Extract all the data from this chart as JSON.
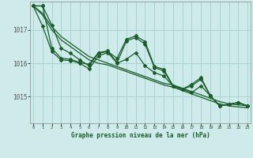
{
  "title": "Graphe pression niveau de la mer (hPa)",
  "bg_color": "#ceeaea",
  "grid_color": "#a8d4d4",
  "line_color": "#1a5c2a",
  "marker_color": "#1a5c2a",
  "x_ticks": [
    0,
    1,
    2,
    3,
    4,
    5,
    6,
    7,
    8,
    9,
    10,
    11,
    12,
    13,
    14,
    15,
    16,
    17,
    18,
    19,
    20,
    21,
    22,
    23
  ],
  "y_ticks": [
    1015,
    1016,
    1017
  ],
  "ylim": [
    1014.2,
    1017.85
  ],
  "xlim": [
    -0.3,
    23.3
  ],
  "series1": [
    1017.72,
    1017.72,
    1017.15,
    1016.45,
    1016.3,
    1016.1,
    1015.92,
    1016.3,
    1016.35,
    1016.15,
    1016.72,
    1016.82,
    1016.65,
    1015.9,
    1015.82,
    1015.32,
    1015.22,
    1015.32,
    1015.52,
    1015.02,
    1014.72,
    1014.77,
    1014.82,
    1014.72
  ],
  "series2": [
    1017.72,
    1017.72,
    1016.45,
    1016.15,
    1016.12,
    1016.02,
    1015.97,
    1016.32,
    1016.37,
    1016.02,
    1016.67,
    1016.77,
    1016.57,
    1015.87,
    1015.77,
    1015.32,
    1015.22,
    1015.37,
    1015.57,
    1015.02,
    1014.72,
    1014.77,
    1014.82,
    1014.72
  ],
  "series3": [
    1017.72,
    1017.12,
    1016.35,
    1016.1,
    1016.08,
    1016.0,
    1015.83,
    1016.22,
    1016.32,
    1016.0,
    1016.12,
    1016.32,
    1015.92,
    1015.72,
    1015.62,
    1015.32,
    1015.22,
    1015.12,
    1015.32,
    1015.02,
    1014.72,
    1014.77,
    1014.82,
    1014.72
  ],
  "series_smooth1": [
    1017.72,
    1017.5,
    1017.1,
    1016.8,
    1016.6,
    1016.4,
    1016.2,
    1016.1,
    1016.0,
    1015.9,
    1015.8,
    1015.7,
    1015.6,
    1015.5,
    1015.4,
    1015.35,
    1015.25,
    1015.15,
    1015.05,
    1014.95,
    1014.85,
    1014.78,
    1014.75,
    1014.72
  ],
  "series_smooth2": [
    1017.72,
    1017.45,
    1017.0,
    1016.7,
    1016.5,
    1016.3,
    1016.1,
    1016.0,
    1015.95,
    1015.85,
    1015.75,
    1015.65,
    1015.55,
    1015.45,
    1015.35,
    1015.28,
    1015.18,
    1015.08,
    1014.98,
    1014.88,
    1014.78,
    1014.72,
    1014.69,
    1014.66
  ]
}
